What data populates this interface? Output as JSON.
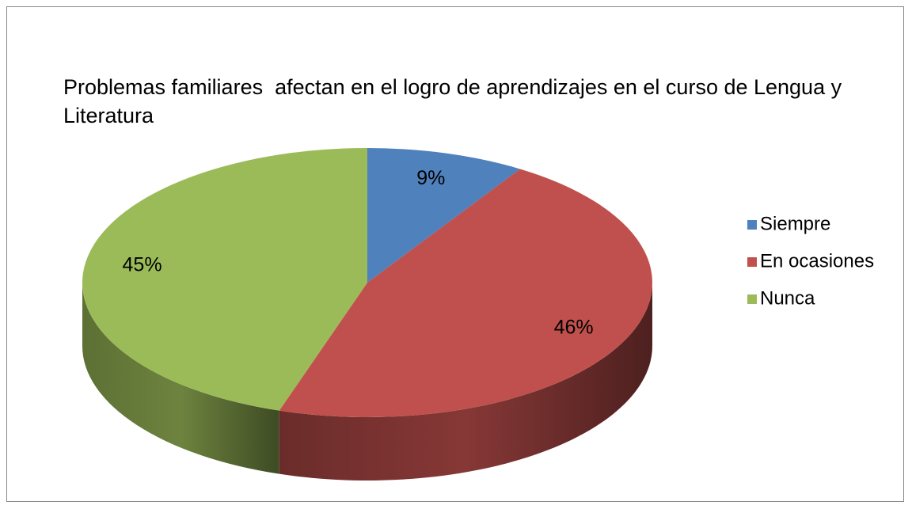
{
  "chart_data": {
    "type": "pie",
    "title": "Problemas familiares  afectan en el logro de aprendizajes en el curso de Lengua y Literatura",
    "categories": [
      "Siempre",
      "En ocasiones",
      "Nunca"
    ],
    "values": [
      9,
      46,
      45
    ],
    "value_labels": [
      "9%",
      "46%",
      "45%"
    ],
    "colors": [
      "#4f81bd",
      "#c0504d",
      "#9bbb59"
    ],
    "legend": "right"
  }
}
